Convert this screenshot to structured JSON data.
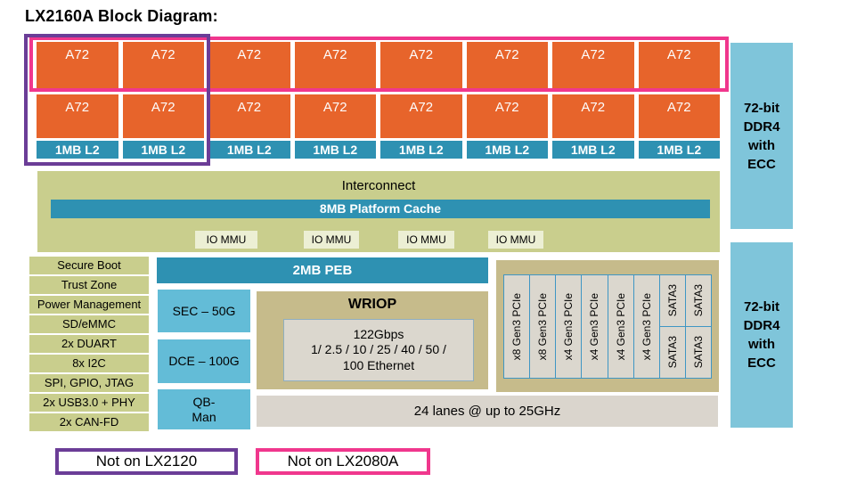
{
  "title": "LX2160A Block Diagram:",
  "palette": {
    "core_orange": "#E7642B",
    "teal": "#2E91B2",
    "olive_green": "#C9CE8D",
    "iommu_cream": "#ECEFD4",
    "accelerator_blue": "#63BCD7",
    "ddr_blue": "#7FC5DA",
    "tan": "#C6BB8B",
    "bar_gray": "#DAD5CD",
    "cell_gray": "#DBD7CE",
    "cell_border_blue": "#3F96C4",
    "purple": "#6B3D97",
    "pink": "#F0378D"
  },
  "cores": {
    "columns": 8,
    "rows": 2,
    "core_label": "A72",
    "l2_label": "1MB L2"
  },
  "interconnect": {
    "label": "Interconnect",
    "cache_label": "8MB Platform Cache",
    "iommu_label": "IO MMU",
    "iommu_count": 4
  },
  "sidebar": {
    "items": [
      "Secure Boot",
      "Trust Zone",
      "Power Management",
      "SD/eMMC",
      "2x DUART",
      "8x I2C",
      "SPI, GPIO, JTAG",
      "2x USB3.0 + PHY",
      "2x CAN-FD"
    ]
  },
  "peb": {
    "label": "2MB PEB"
  },
  "accelerators": [
    {
      "label": "SEC – 50G"
    },
    {
      "label": "DCE – 100G"
    },
    {
      "label": "QB-\nMan"
    }
  ],
  "wriop": {
    "title": "WRIOP",
    "detail": "122Gbps\n1/ 2.5 / 10 / 25 / 40 / 50 /\n100 Ethernet"
  },
  "serdes": {
    "lanes_label": "24 lanes @ up to 25GHz",
    "columns": [
      {
        "type": "single",
        "label": "x8 Gen3 PCIe"
      },
      {
        "type": "single",
        "label": "x8 Gen3 PCIe"
      },
      {
        "type": "single",
        "label": "x4 Gen3 PCIe"
      },
      {
        "type": "single",
        "label": "x4 Gen3 PCIe"
      },
      {
        "type": "single",
        "label": "x4 Gen3 PCIe"
      },
      {
        "type": "single",
        "label": "x4 Gen3 PCIe"
      },
      {
        "type": "split",
        "top": "SATA3",
        "bottom": "SATA3"
      },
      {
        "type": "split",
        "top": "SATA3",
        "bottom": "SATA3"
      }
    ]
  },
  "ddr": {
    "count": 2,
    "label": "72-bit\nDDR4\nwith\nECC"
  },
  "legend": [
    {
      "label": "Not on LX2120",
      "border": "#6B3D97"
    },
    {
      "label": "Not on LX2080A",
      "border": "#F0378D"
    }
  ]
}
